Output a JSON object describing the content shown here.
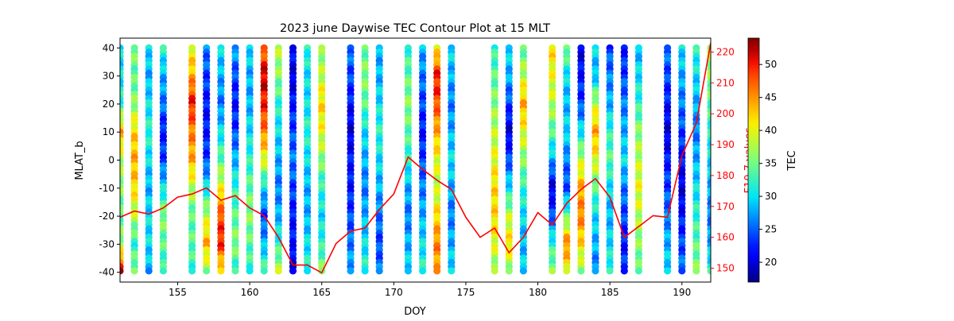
{
  "chart_data": {
    "type": "scatter",
    "title": "2023 june Daywise TEC Contour Plot at 15 MLT",
    "xlabel": "DOY",
    "ylabel": "MLAT_b",
    "y2label": "F10.7 values",
    "colorbar_label": "TEC",
    "xlim": [
      151,
      192
    ],
    "ylim": [
      -43.5,
      43.5
    ],
    "y2lim": [
      145.5,
      224.5
    ],
    "colorbar_range": [
      17,
      54
    ],
    "colormap": "jet",
    "xticks": [
      155,
      160,
      165,
      170,
      175,
      180,
      185,
      190
    ],
    "yticks": [
      -40,
      -30,
      -20,
      -10,
      0,
      10,
      20,
      30,
      40
    ],
    "y2ticks": [
      150,
      160,
      170,
      180,
      190,
      200,
      210,
      220
    ],
    "colorbar_ticks": [
      20,
      25,
      30,
      35,
      40,
      45,
      50
    ],
    "colors": {
      "f107_line": "#ff0000",
      "f107_axis": "#ff0000"
    },
    "tec_days": [
      151,
      152,
      153,
      154,
      156,
      157,
      158,
      159,
      160,
      161,
      162,
      163,
      164,
      165,
      167,
      168,
      169,
      171,
      172,
      173,
      174,
      177,
      178,
      179,
      181,
      182,
      183,
      184,
      185,
      186,
      187,
      189,
      190,
      191,
      192
    ],
    "tec_mlat": [
      40,
      30,
      20,
      10,
      0,
      -10,
      -20,
      -30,
      -40
    ],
    "tec_profiles": {
      "151": [
        30,
        30,
        32,
        44,
        38,
        36,
        34,
        37,
        52
      ],
      "152": [
        36,
        34,
        36,
        42,
        44,
        42,
        38,
        32,
        36
      ],
      "153": [
        30,
        28,
        30,
        32,
        30,
        28,
        30,
        30,
        28
      ],
      "154": [
        32,
        28,
        26,
        22,
        24,
        30,
        36,
        34,
        32
      ],
      "156": [
        40,
        44,
        50,
        46,
        44,
        38,
        34,
        34,
        32
      ],
      "157": [
        26,
        24,
        22,
        22,
        24,
        30,
        38,
        44,
        36
      ],
      "158": [
        30,
        28,
        26,
        30,
        34,
        40,
        48,
        50,
        40
      ],
      "159": [
        28,
        24,
        22,
        24,
        28,
        32,
        34,
        36,
        32
      ],
      "160": [
        30,
        28,
        28,
        30,
        32,
        34,
        36,
        34,
        32
      ],
      "161": [
        46,
        52,
        50,
        46,
        40,
        30,
        24,
        28,
        34
      ],
      "162": [
        38,
        36,
        32,
        30,
        28,
        26,
        28,
        32,
        38
      ],
      "163": [
        22,
        20,
        22,
        24,
        26,
        24,
        22,
        22,
        20
      ],
      "164": [
        32,
        30,
        30,
        32,
        30,
        28,
        28,
        30,
        32
      ],
      "165": [
        36,
        38,
        42,
        40,
        36,
        32,
        30,
        32,
        36
      ],
      "167": [
        26,
        24,
        22,
        20,
        22,
        22,
        24,
        26,
        28
      ],
      "168": [
        34,
        36,
        34,
        30,
        28,
        26,
        28,
        30,
        32
      ],
      "169": [
        28,
        28,
        30,
        32,
        30,
        28,
        26,
        24,
        26
      ],
      "171": [
        32,
        34,
        36,
        34,
        32,
        28,
        26,
        28,
        30
      ],
      "172": [
        28,
        26,
        24,
        22,
        24,
        26,
        28,
        30,
        32
      ],
      "173": [
        40,
        50,
        48,
        44,
        40,
        38,
        42,
        46,
        44
      ],
      "174": [
        30,
        28,
        26,
        28,
        30,
        28,
        26,
        28,
        30
      ],
      "177": [
        32,
        34,
        36,
        38,
        40,
        42,
        42,
        40,
        36
      ],
      "178": [
        30,
        28,
        24,
        20,
        24,
        30,
        38,
        42,
        36
      ],
      "179": [
        34,
        38,
        44,
        40,
        36,
        32,
        30,
        28,
        30
      ],
      "181": [
        42,
        40,
        38,
        34,
        28,
        20,
        24,
        32,
        36
      ],
      "182": [
        36,
        30,
        28,
        30,
        26,
        24,
        34,
        46,
        40
      ],
      "183": [
        20,
        22,
        24,
        30,
        38,
        44,
        46,
        42,
        36
      ],
      "184": [
        30,
        28,
        38,
        44,
        40,
        34,
        30,
        28,
        26
      ],
      "185": [
        24,
        26,
        28,
        32,
        34,
        30,
        28,
        30,
        32
      ],
      "186": [
        22,
        24,
        26,
        28,
        30,
        26,
        24,
        22,
        24
      ],
      "187": [
        28,
        30,
        32,
        36,
        38,
        40,
        38,
        36,
        34
      ],
      "189": [
        26,
        24,
        22,
        20,
        22,
        24,
        26,
        28,
        30
      ],
      "190": [
        30,
        28,
        26,
        24,
        22,
        20,
        22,
        24,
        26
      ],
      "191": [
        32,
        30,
        28,
        26,
        28,
        30,
        32,
        34,
        36
      ],
      "192": [
        38,
        36,
        34,
        32,
        30,
        28,
        26,
        28,
        32
      ]
    },
    "f107_x": [
      151,
      152,
      153,
      154,
      155,
      156,
      157,
      158,
      159,
      160,
      161,
      162,
      163,
      164,
      165,
      166,
      167,
      168,
      169,
      170,
      171,
      172,
      173,
      174,
      175,
      176,
      177,
      178,
      179,
      180,
      181,
      182,
      183,
      184,
      185,
      186,
      187,
      188,
      189,
      190,
      191,
      192
    ],
    "f107_y": [
      166.5,
      168.5,
      167.5,
      169.5,
      173,
      174,
      176,
      172,
      173.5,
      169.5,
      167,
      160,
      151,
      151,
      148.5,
      158,
      162,
      163,
      169,
      174,
      186,
      182,
      178.5,
      175.5,
      166.5,
      160,
      163,
      155,
      160,
      168,
      164,
      171,
      175.5,
      179,
      173,
      160,
      163.5,
      167,
      166.5,
      186.5,
      197,
      223
    ]
  }
}
